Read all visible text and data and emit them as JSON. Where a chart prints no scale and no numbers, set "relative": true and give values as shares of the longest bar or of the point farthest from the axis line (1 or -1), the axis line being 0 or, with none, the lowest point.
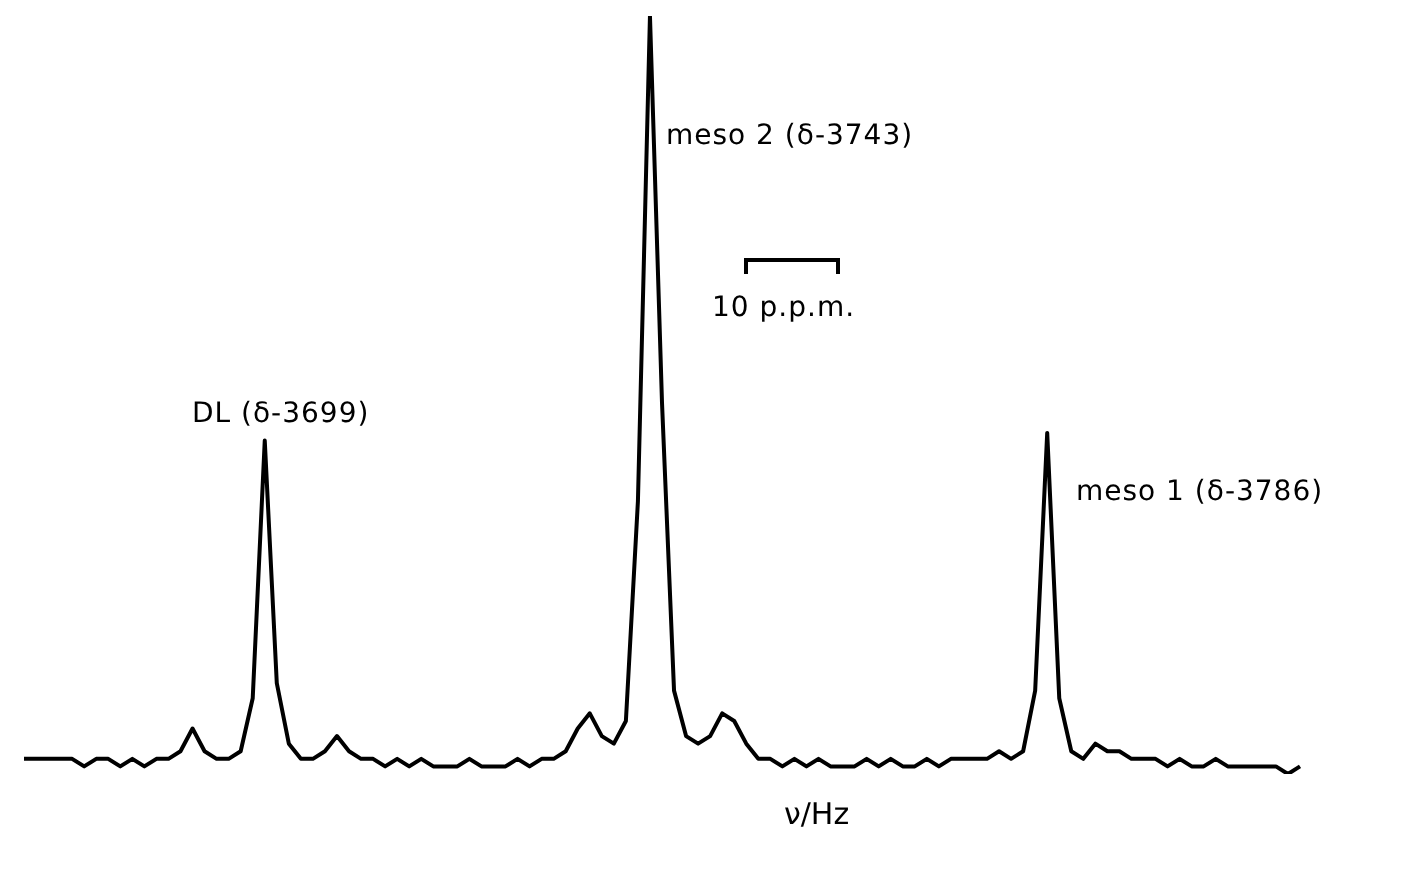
{
  "chart_data": {
    "type": "line",
    "relative": true,
    "xlabel": "ν/Hz",
    "color": "#000000",
    "marker": "none",
    "line_style": "solid",
    "legend": false,
    "categories": [
      null,
      null,
      null,
      null,
      null,
      null,
      null,
      null,
      null,
      null,
      null,
      null,
      null,
      null,
      null,
      null,
      null,
      null,
      null,
      null,
      null,
      null,
      null,
      null,
      null,
      null,
      null,
      null,
      null,
      null,
      null,
      null,
      null,
      null,
      null,
      null,
      null,
      null,
      null,
      null,
      null,
      null,
      null,
      null,
      null,
      null,
      null,
      null,
      null,
      null,
      null,
      null,
      null,
      null,
      null,
      null,
      null,
      null,
      null,
      null,
      null,
      null,
      null,
      null,
      null,
      null,
      null,
      null,
      null,
      null,
      null,
      null,
      null,
      null,
      null,
      null,
      null,
      null,
      null,
      null,
      null,
      null,
      null,
      null,
      null,
      null,
      null,
      null,
      null,
      null,
      null,
      null,
      null,
      null,
      null,
      null,
      null,
      null,
      null,
      null,
      null,
      null,
      null,
      null,
      null,
      null,
      null
    ],
    "values": [
      0.02,
      0.02,
      0.02,
      0.02,
      0.02,
      0.01,
      0.02,
      0.02,
      0.01,
      0.02,
      0.01,
      0.02,
      0.02,
      0.03,
      0.06,
      0.03,
      0.02,
      0.02,
      0.03,
      0.1,
      0.44,
      0.12,
      0.04,
      0.02,
      0.02,
      0.03,
      0.05,
      0.03,
      0.02,
      0.02,
      0.01,
      0.02,
      0.01,
      0.02,
      0.01,
      0.01,
      0.01,
      0.02,
      0.01,
      0.01,
      0.01,
      0.02,
      0.01,
      0.02,
      0.02,
      0.03,
      0.06,
      0.08,
      0.05,
      0.04,
      0.07,
      0.36,
      1,
      0.49,
      0.11,
      0.05,
      0.04,
      0.05,
      0.08,
      0.07,
      0.04,
      0.02,
      0.02,
      0.01,
      0.02,
      0.01,
      0.02,
      0.01,
      0.01,
      0.01,
      0.02,
      0.01,
      0.02,
      0.01,
      0.01,
      0.02,
      0.01,
      0.02,
      0.02,
      0.02,
      0.02,
      0.03,
      0.02,
      0.03,
      0.11,
      0.45,
      0.1,
      0.03,
      0.02,
      0.04,
      0.03,
      0.03,
      0.02,
      0.02,
      0.02,
      0.01,
      0.02,
      0.01,
      0.01,
      0.02,
      0.01,
      0.01,
      0.01,
      0.01,
      0.01,
      0,
      0.01
    ],
    "annotations": [
      "DL (δ-3699)",
      "meso 2 (δ-3743)",
      "10 p.p.m.",
      "meso 1 (δ-3786)"
    ]
  }
}
